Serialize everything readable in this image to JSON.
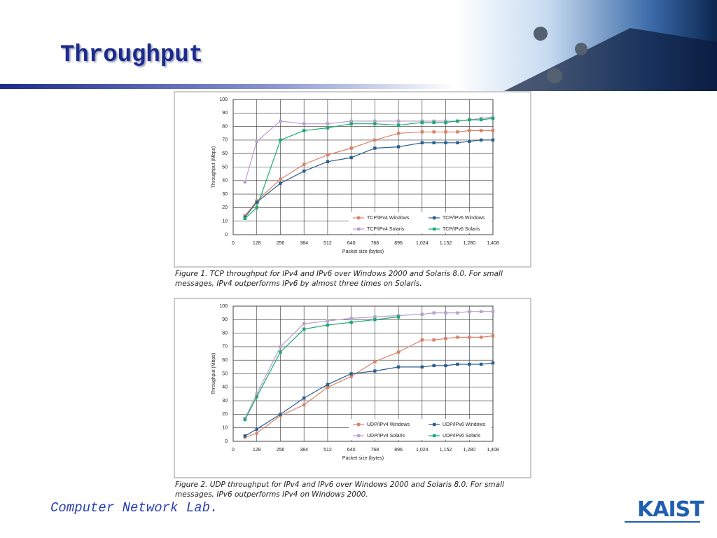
{
  "slide": {
    "title": "Throughput",
    "footer": "Computer Network Lab.",
    "logo": "KAIST"
  },
  "chart_data": [
    {
      "type": "line",
      "caption": "Figure 1. TCP throughput for IPv4 and IPv6 over Windows 2000 and Solaris 8.0. For small messages, IPv4 outperforms IPv6 by almost three times on Solaris.",
      "x_label": "Packet size (bytes)",
      "y_label": "Throughput (Mbps)",
      "x": [
        64,
        128,
        256,
        384,
        512,
        640,
        768,
        896,
        1024,
        1088,
        1152,
        1216,
        1280,
        1344,
        1408
      ],
      "series": [
        {
          "name": "TCP/IPv4 Windows",
          "color": "#d9826a",
          "values": [
            14,
            25,
            41,
            52,
            59,
            64,
            70,
            75,
            76,
            76,
            76,
            76,
            77,
            77,
            77
          ]
        },
        {
          "name": "TCP/IPv6 Windows",
          "color": "#2a5f8f",
          "values": [
            13,
            24,
            38,
            47,
            54,
            57,
            64,
            65,
            68,
            68,
            68,
            68,
            69,
            70,
            70
          ]
        },
        {
          "name": "TCP/IPv4 Solaris",
          "color": "#b8a0d0",
          "values": [
            39,
            69,
            84,
            82,
            82,
            84,
            84,
            84,
            84,
            84,
            84,
            84,
            85,
            86,
            87
          ]
        },
        {
          "name": "TCP/IPv6 Solaris",
          "color": "#1aab6e",
          "values": [
            12,
            20,
            70,
            77,
            79,
            82,
            82,
            81,
            83,
            83,
            83,
            84,
            85,
            85,
            86
          ]
        }
      ],
      "xlim": [
        0,
        1408
      ],
      "ylim": [
        0,
        100
      ],
      "xticks": [
        0,
        128,
        256,
        384,
        512,
        640,
        768,
        896,
        {
          "value": 1024,
          "label": "1,024"
        },
        {
          "value": 1152,
          "label": "1,152"
        },
        {
          "value": 1280,
          "label": "1,280"
        },
        {
          "value": 1408,
          "label": "1,408"
        }
      ],
      "yticks": [
        0,
        10,
        20,
        30,
        40,
        50,
        60,
        70,
        80,
        90,
        100
      ],
      "grid": true,
      "legend": "lower-right"
    },
    {
      "type": "line",
      "caption": "Figure 2. UDP throughput for IPv4 and IPv6 over Windows 2000 and Solaris 8.0. For small messages, IPv6 outperforms IPv4 on Windows 2000.",
      "x_label": "Packet size (bytes)",
      "y_label": "Throughput (Mbps)",
      "x": [
        64,
        128,
        256,
        384,
        512,
        640,
        768,
        896,
        1024,
        1088,
        1152,
        1216,
        1280,
        1344,
        1408
      ],
      "series": [
        {
          "name": "UDP/IPv4 Windows",
          "color": "#d9826a",
          "values": [
            3,
            6,
            19,
            27,
            40,
            48,
            59,
            66,
            75,
            75,
            76,
            77,
            77,
            77,
            78
          ]
        },
        {
          "name": "UDP/IPv6 Windows",
          "color": "#2a5f8f",
          "values": [
            4,
            9,
            20,
            32,
            42,
            50,
            52,
            55,
            55,
            56,
            56,
            57,
            57,
            57,
            58
          ]
        },
        {
          "name": "UDP/IPv4 Solaris",
          "color": "#b8a0d0",
          "values": [
            17,
            35,
            70,
            87,
            89,
            91,
            92,
            93,
            94,
            95,
            95,
            95,
            96,
            96,
            96
          ]
        },
        {
          "name": "UDP/IPv6 Solaris",
          "color": "#1aab6e",
          "values": [
            16,
            33,
            66,
            83,
            86,
            88,
            90,
            92,
            null,
            null,
            null,
            null,
            null,
            null,
            null
          ]
        }
      ],
      "xlim": [
        0,
        1408
      ],
      "ylim": [
        0,
        100
      ],
      "xticks": [
        0,
        128,
        256,
        384,
        512,
        640,
        768,
        896,
        {
          "value": 1024,
          "label": "1,024"
        },
        {
          "value": 1152,
          "label": "1,152"
        },
        {
          "value": 1280,
          "label": "1,280"
        },
        {
          "value": 1408,
          "label": "1,408"
        }
      ],
      "yticks": [
        0,
        10,
        20,
        30,
        40,
        50,
        60,
        70,
        80,
        90,
        100
      ],
      "grid": true,
      "legend": "lower-right"
    }
  ]
}
